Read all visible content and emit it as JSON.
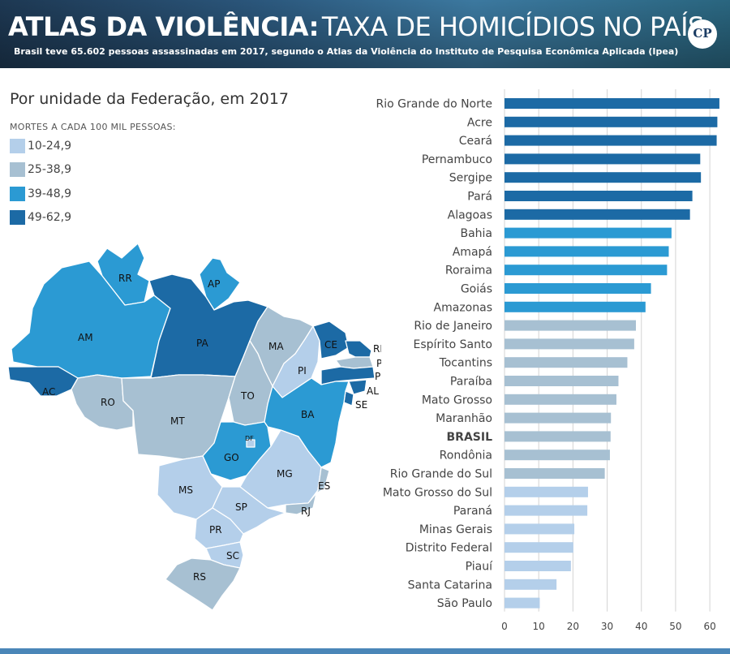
{
  "header": {
    "title_bold": "ATLAS DA VIOLÊNCIA:",
    "title_light": "TAXA DE HOMICÍDIOS NO PAÍS",
    "subtitle": "Brasil teve 65.602 pessoas assassinadas em 2017, segundo o Atlas da Violência do Instituto de Pesquisa Econômica Aplicada (Ipea)",
    "logo_text": "CP"
  },
  "map": {
    "title": "Por unidade da Federação, em 2017",
    "legend_title": "MORTES A CADA 100 MIL PESSOAS:",
    "legend": [
      {
        "label": "10-24,9",
        "color": "#b4cfea"
      },
      {
        "label": "25-38,9",
        "color": "#a7c0d2"
      },
      {
        "label": "39-48,9",
        "color": "#2b9ad3"
      },
      {
        "label": "49-62,9",
        "color": "#1c6aa5"
      }
    ],
    "states": [
      {
        "code": "RR",
        "class": 2
      },
      {
        "code": "AP",
        "class": 2
      },
      {
        "code": "AM",
        "class": 2
      },
      {
        "code": "PA",
        "class": 3
      },
      {
        "code": "AC",
        "class": 3
      },
      {
        "code": "RO",
        "class": 1
      },
      {
        "code": "MT",
        "class": 1
      },
      {
        "code": "MA",
        "class": 1
      },
      {
        "code": "TO",
        "class": 1
      },
      {
        "code": "PI",
        "class": 0
      },
      {
        "code": "CE",
        "class": 3
      },
      {
        "code": "RN",
        "class": 3
      },
      {
        "code": "PB",
        "class": 1
      },
      {
        "code": "PE",
        "class": 3
      },
      {
        "code": "AL",
        "class": 3
      },
      {
        "code": "SE",
        "class": 3
      },
      {
        "code": "BA",
        "class": 2
      },
      {
        "code": "GO",
        "class": 2
      },
      {
        "code": "DF",
        "class": 0
      },
      {
        "code": "MS",
        "class": 0
      },
      {
        "code": "MG",
        "class": 0
      },
      {
        "code": "ES",
        "class": 1
      },
      {
        "code": "RJ",
        "class": 1
      },
      {
        "code": "SP",
        "class": 0
      },
      {
        "code": "PR",
        "class": 0
      },
      {
        "code": "SC",
        "class": 0
      },
      {
        "code": "RS",
        "class": 1
      }
    ]
  },
  "chart_data": {
    "type": "bar",
    "orientation": "horizontal",
    "categories": [
      "Rio Grande do Norte",
      "Acre",
      "Ceará",
      "Pernambuco",
      "Sergipe",
      "Pará",
      "Alagoas",
      "Bahia",
      "Amapá",
      "Roraima",
      "Goiás",
      "Amazonas",
      "Rio de Janeiro",
      "Espírito Santo",
      "Tocantins",
      "Paraíba",
      "Mato Grosso",
      "Maranhão",
      "BRASIL",
      "Rondônia",
      "Rio Grande do Sul",
      "Mato Grosso do Sul",
      "Paraná",
      "Minas Gerais",
      "Distrito Federal",
      "Piauí",
      "Santa Catarina",
      "São Paulo"
    ],
    "values": [
      62.8,
      62.2,
      62.0,
      57.2,
      57.4,
      54.9,
      54.2,
      48.8,
      48.0,
      47.5,
      42.8,
      41.2,
      38.4,
      37.9,
      35.9,
      33.3,
      32.7,
      31.1,
      31.0,
      30.8,
      29.3,
      24.4,
      24.2,
      20.4,
      20.1,
      19.4,
      15.2,
      10.3
    ],
    "colors": [
      "#1c6aa5",
      "#1c6aa5",
      "#1c6aa5",
      "#1c6aa5",
      "#1c6aa5",
      "#1c6aa5",
      "#1c6aa5",
      "#2b9ad3",
      "#2b9ad3",
      "#2b9ad3",
      "#2b9ad3",
      "#2b9ad3",
      "#a7c0d2",
      "#a7c0d2",
      "#a7c0d2",
      "#a7c0d2",
      "#a7c0d2",
      "#a7c0d2",
      "#a7c0d2",
      "#a7c0d2",
      "#a7c0d2",
      "#b4cfea",
      "#b4cfea",
      "#b4cfea",
      "#b4cfea",
      "#b4cfea",
      "#b4cfea",
      "#b4cfea"
    ],
    "highlight": "BRASIL",
    "xlim": [
      0,
      64
    ],
    "xticks": [
      0,
      10,
      20,
      30,
      40,
      50,
      60
    ],
    "grid": true
  }
}
